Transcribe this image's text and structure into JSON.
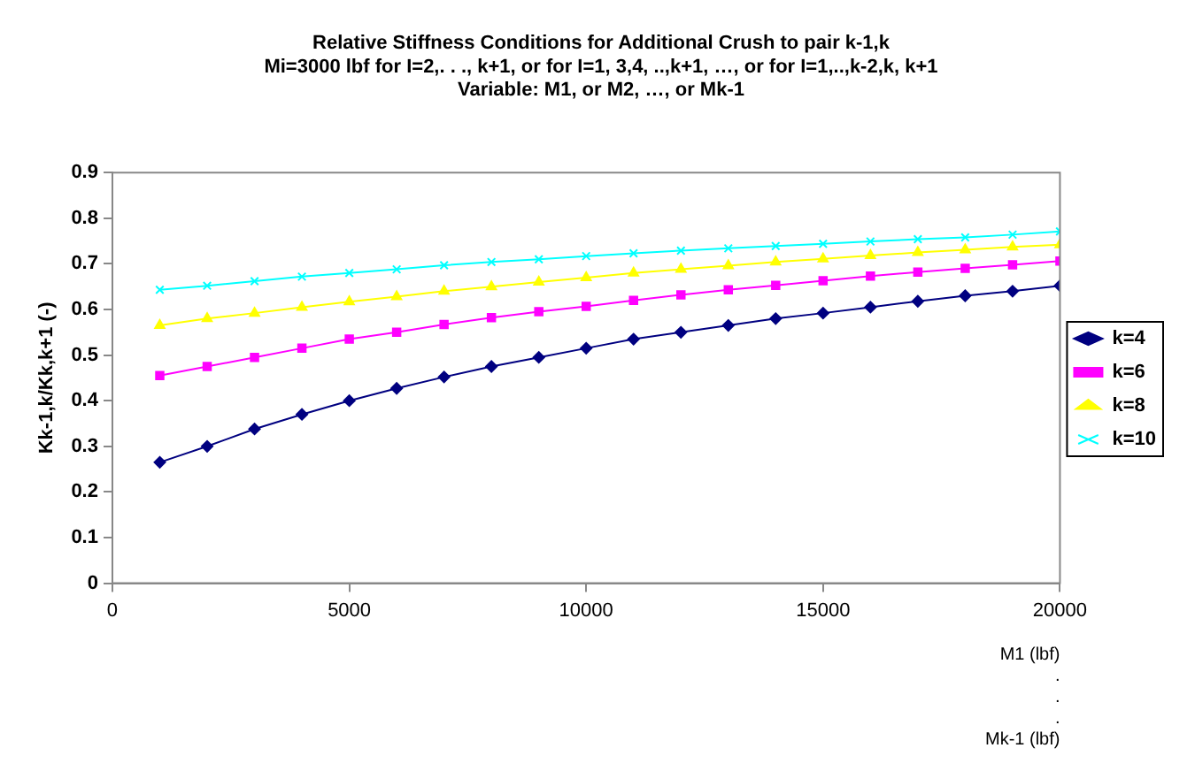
{
  "chart_data": {
    "type": "line",
    "title": [
      "Relative Stiffness Conditions for Additional Crush to pair k-1,k",
      "Mi=3000 lbf for I=2,. . ., k+1, or for I=1, 3,4, ..,k+1, …, or for I=1,..,k-2,k, k+1",
      "Variable: M1, or M2, …, or Mk-1"
    ],
    "xlabel": "M1 (lbf)\n.\n.\n.\nMk-1 (lbf)",
    "ylabel": "Kk-1,k/Kk,k+1 (-)",
    "x": [
      1000,
      2000,
      3000,
      4000,
      5000,
      6000,
      7000,
      8000,
      9000,
      10000,
      11000,
      12000,
      13000,
      14000,
      15000,
      16000,
      17000,
      18000,
      19000,
      20000
    ],
    "xlim": [
      0,
      20000
    ],
    "xticks": [
      0,
      5000,
      10000,
      15000,
      20000
    ],
    "ylim": [
      0,
      0.9
    ],
    "yticks": [
      0,
      0.1,
      0.2,
      0.3,
      0.4,
      0.5,
      0.6,
      0.7,
      0.8,
      0.9
    ],
    "grid": false,
    "legend": "right",
    "line_style": "solid",
    "series": [
      {
        "name": "k=4",
        "color": "#000080",
        "marker": "diamond",
        "values": [
          0.265,
          0.3,
          0.338,
          0.37,
          0.4,
          0.427,
          0.452,
          0.475,
          0.495,
          0.515,
          0.535,
          0.55,
          0.565,
          0.58,
          0.592,
          0.605,
          0.618,
          0.63,
          0.64,
          0.652
        ]
      },
      {
        "name": "k=6",
        "color": "#ff00ff",
        "marker": "square",
        "values": [
          0.455,
          0.475,
          0.495,
          0.515,
          0.535,
          0.55,
          0.567,
          0.582,
          0.595,
          0.607,
          0.62,
          0.632,
          0.643,
          0.653,
          0.663,
          0.673,
          0.682,
          0.69,
          0.698,
          0.706
        ]
      },
      {
        "name": "k=8",
        "color": "#ffff00",
        "marker": "triangle",
        "values": [
          0.565,
          0.58,
          0.592,
          0.605,
          0.617,
          0.628,
          0.64,
          0.65,
          0.66,
          0.67,
          0.68,
          0.688,
          0.696,
          0.704,
          0.711,
          0.718,
          0.725,
          0.731,
          0.737,
          0.742
        ]
      },
      {
        "name": "k=10",
        "color": "#00ffff",
        "marker": "cross",
        "values": [
          0.643,
          0.652,
          0.662,
          0.672,
          0.68,
          0.688,
          0.697,
          0.704,
          0.71,
          0.717,
          0.723,
          0.729,
          0.734,
          0.739,
          0.744,
          0.749,
          0.754,
          0.758,
          0.764,
          0.771
        ]
      }
    ]
  }
}
